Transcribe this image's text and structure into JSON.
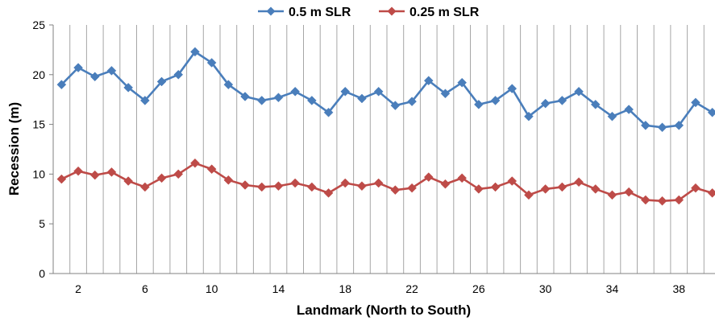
{
  "chart_data": {
    "type": "line",
    "title": "",
    "xlabel": "Landmark (North to South)",
    "ylabel": "Recession (m)",
    "ylim": [
      0,
      25
    ],
    "yticks": [
      0,
      5,
      10,
      15,
      20,
      25
    ],
    "xticks": [
      2,
      6,
      10,
      14,
      18,
      22,
      26,
      30,
      34,
      38
    ],
    "xlim": [
      0.5,
      39.5
    ],
    "grid": "vertical",
    "legend": "top-center",
    "x": [
      1,
      2,
      3,
      4,
      5,
      6,
      7,
      8,
      9,
      10,
      11,
      12,
      13,
      14,
      15,
      16,
      17,
      18,
      19,
      20,
      21,
      22,
      23,
      24,
      25,
      26,
      27,
      28,
      29,
      30,
      31,
      32,
      33,
      34,
      35,
      36,
      37,
      38,
      39,
      40
    ],
    "series": [
      {
        "name": "0.5 m SLR",
        "color": "#4a7ebb",
        "marker": "diamond",
        "values": [
          19.0,
          20.7,
          19.8,
          20.4,
          18.7,
          17.4,
          19.3,
          20.0,
          22.3,
          21.2,
          19.0,
          17.8,
          17.4,
          17.7,
          18.3,
          17.4,
          16.2,
          18.3,
          17.6,
          18.3,
          16.9,
          17.3,
          19.4,
          18.1,
          19.2,
          17.0,
          17.4,
          18.6,
          15.8,
          17.1,
          17.4,
          18.3,
          17.0,
          15.8,
          16.5,
          14.9,
          14.7,
          14.9,
          17.2,
          16.2
        ]
      },
      {
        "name": "0.25 m SLR",
        "color": "#be4b48",
        "marker": "diamond",
        "values": [
          9.5,
          10.3,
          9.9,
          10.2,
          9.3,
          8.7,
          9.6,
          10.0,
          11.1,
          10.5,
          9.4,
          8.9,
          8.7,
          8.8,
          9.1,
          8.7,
          8.1,
          9.1,
          8.8,
          9.1,
          8.4,
          8.6,
          9.7,
          9.0,
          9.6,
          8.5,
          8.7,
          9.3,
          7.9,
          8.5,
          8.7,
          9.2,
          8.5,
          7.9,
          8.2,
          7.4,
          7.3,
          7.4,
          8.6,
          8.1
        ]
      }
    ]
  }
}
